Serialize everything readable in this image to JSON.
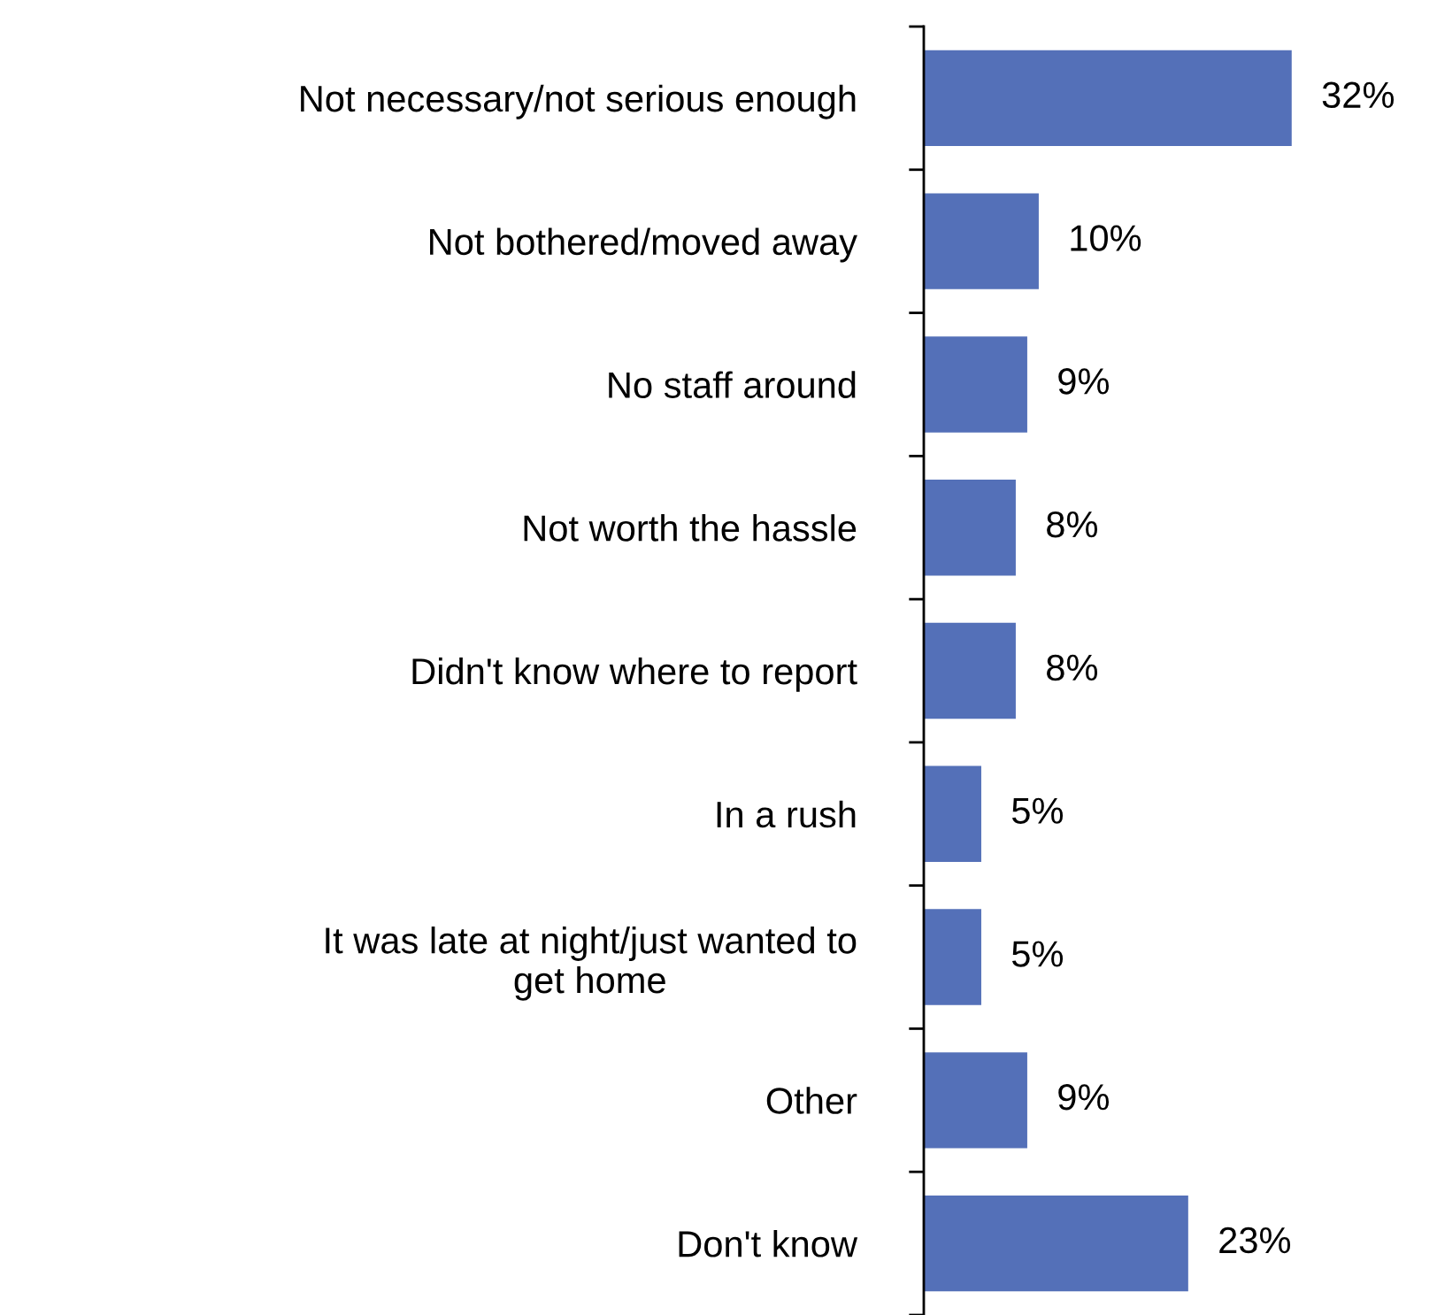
{
  "chart_data": {
    "type": "bar",
    "orientation": "horizontal",
    "categories": [
      "Not necessary/not serious enough",
      "Not bothered/moved away",
      "No staff around",
      "Not worth the hassle",
      "Didn't know where to report",
      "In a rush",
      "It was late at night/just wanted to\nget home",
      "Other",
      "Don't know"
    ],
    "values": [
      32,
      10,
      9,
      8,
      8,
      5,
      5,
      9,
      23
    ],
    "value_labels": [
      "32%",
      "10%",
      "9%",
      "8%",
      "8%",
      "5%",
      "5%",
      "9%",
      "23%"
    ],
    "color": "#5470b8",
    "grid": false,
    "legend": false
  }
}
